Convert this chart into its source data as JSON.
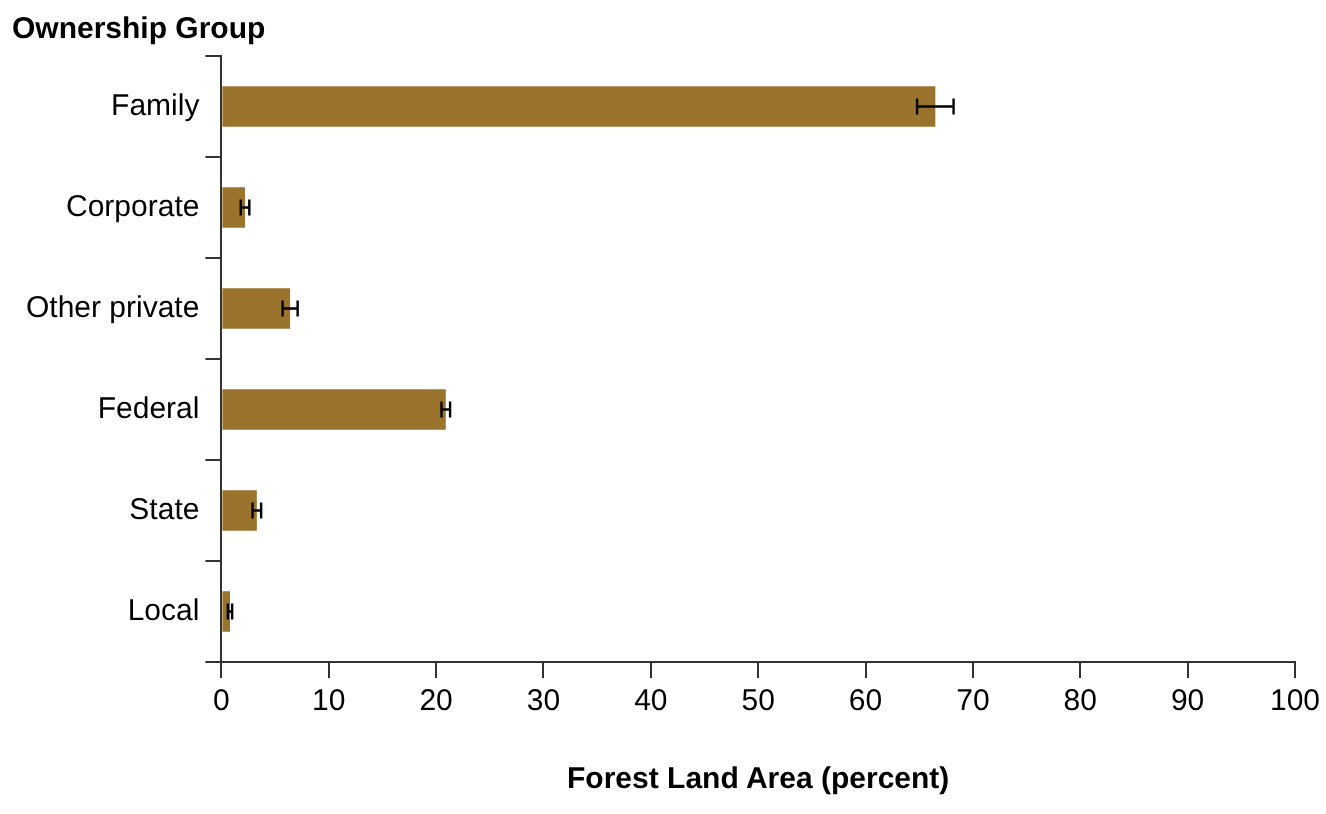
{
  "chart_data": {
    "type": "bar",
    "orientation": "horizontal",
    "ylabel": "Ownership Group",
    "xlabel": "Forest Land Area (percent)",
    "categories": [
      "Family",
      "Corporate",
      "Other private",
      "Federal",
      "State",
      "Local"
    ],
    "values": [
      66.5,
      2.2,
      6.4,
      20.9,
      3.3,
      0.8
    ],
    "errors": [
      1.7,
      0.4,
      0.7,
      0.4,
      0.4,
      0.2
    ],
    "color": "#9a742c",
    "xlim": [
      0,
      100
    ],
    "xticks": [
      0,
      10,
      20,
      30,
      40,
      50,
      60,
      70,
      80,
      90,
      100
    ],
    "grid": false,
    "legend": false
  }
}
